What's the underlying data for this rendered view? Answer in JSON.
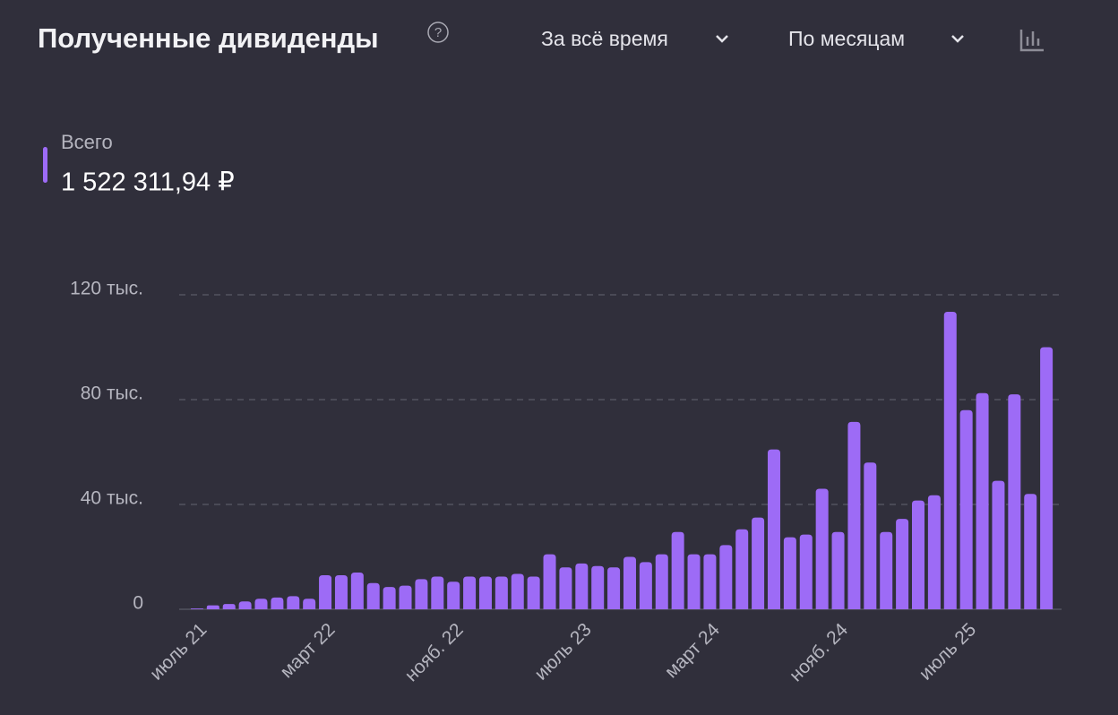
{
  "header": {
    "period": "За всё время",
    "grouping": "По месяцам"
  },
  "chart_data": {
    "type": "bar",
    "title": "Полученные дивиденды",
    "total": "1 522 311,94 ₽",
    "categories": [
      "июль 21",
      null,
      null,
      null,
      null,
      null,
      null,
      null,
      "март 22",
      null,
      null,
      null,
      null,
      null,
      null,
      null,
      "нояб. 22",
      null,
      null,
      null,
      null,
      null,
      null,
      null,
      "июль 23",
      null,
      null,
      null,
      null,
      null,
      null,
      null,
      "март 24",
      null,
      null,
      null,
      null,
      null,
      null,
      null,
      "нояб. 24",
      null,
      null,
      null,
      null,
      null,
      null,
      null,
      "июль 25",
      null,
      null,
      null,
      null,
      null
    ],
    "series": [
      {
        "name": "Всего",
        "color": "#9d6bf6",
        "values": [
          0.3,
          1.5,
          2,
          3,
          4,
          4.5,
          5,
          4,
          13,
          13,
          14,
          10,
          8.5,
          9,
          11.5,
          12.5,
          10.5,
          12.5,
          12.5,
          12.5,
          13.5,
          12.5,
          21,
          16,
          17.5,
          16.5,
          16,
          20,
          18,
          21,
          29.5,
          21,
          21,
          24.5,
          30.5,
          35,
          61,
          27.5,
          28.5,
          46,
          29.5,
          71.5,
          56,
          29.5,
          34.5,
          41.5,
          43.5,
          113.5,
          76,
          82.5,
          49,
          82,
          44,
          100
        ]
      }
    ],
    "ylim": [
      0,
      120
    ],
    "yticks": [
      {
        "value": 0,
        "label": "0"
      },
      {
        "value": 40,
        "label": "40 тыс."
      },
      {
        "value": 80,
        "label": "80 тыс."
      },
      {
        "value": 120,
        "label": "120 тыс."
      }
    ],
    "grid": true
  }
}
